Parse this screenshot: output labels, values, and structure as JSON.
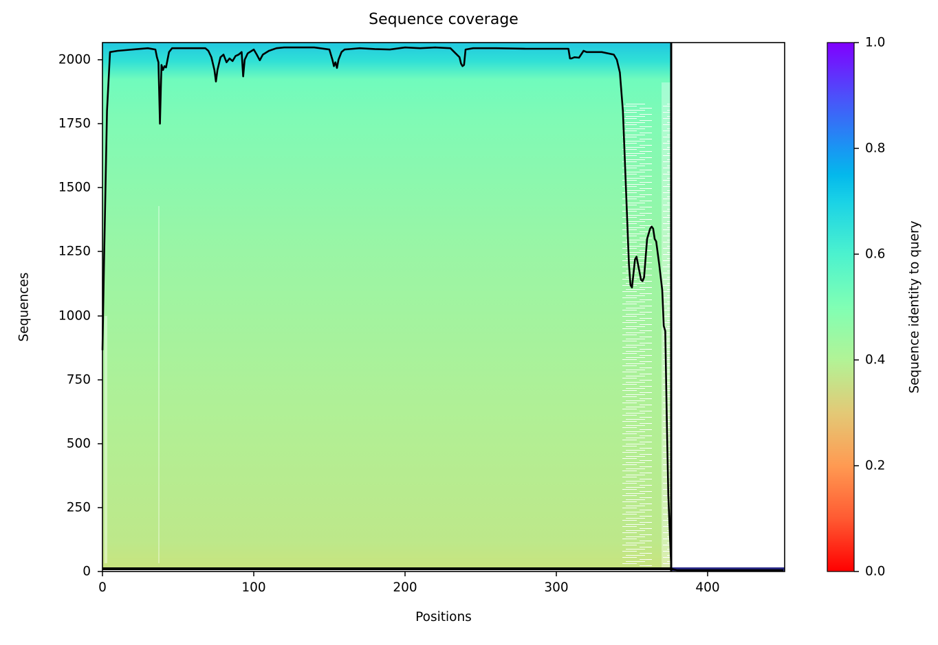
{
  "chart_data": {
    "type": "heatmap",
    "title": "Sequence coverage",
    "xlabel": "Positions",
    "ylabel": "Sequences",
    "xlim": [
      0,
      450
    ],
    "ylim": [
      0,
      2067
    ],
    "xticks": [
      0,
      100,
      200,
      300,
      400
    ],
    "yticks": [
      0,
      250,
      500,
      750,
      1000,
      1250,
      1500,
      1750,
      2000
    ],
    "grid": false,
    "heatmap": {
      "description": "MSA rows sorted by sequence identity; colored by identity to query (rainbow_r colormap). Rows span positions 0-~376; query row 0 spans 0-450.",
      "n_sequences": 2060,
      "aligned_length": 376,
      "identity_gradient": [
        {
          "row": 0,
          "identity": 0.37
        },
        {
          "row": 500,
          "identity": 0.41
        },
        {
          "row": 1000,
          "identity": 0.44
        },
        {
          "row": 1500,
          "identity": 0.47
        },
        {
          "row": 1950,
          "identity": 0.52
        },
        {
          "row": 2060,
          "identity": 0.65
        }
      ]
    },
    "series": [
      {
        "name": "Coverage",
        "type": "line",
        "color": "#000000",
        "x": [
          0,
          1,
          3,
          5,
          10,
          20,
          30,
          35,
          36,
          37,
          38,
          39,
          40,
          41,
          42,
          44,
          46,
          50,
          60,
          68,
          70,
          72,
          74,
          75,
          76,
          78,
          80,
          82,
          84,
          86,
          88,
          90,
          92,
          93,
          94,
          96,
          100,
          102,
          104,
          106,
          110,
          115,
          120,
          140,
          150,
          152,
          153,
          154,
          155,
          156,
          158,
          160,
          170,
          180,
          190,
          200,
          210,
          220,
          230,
          236,
          237,
          238,
          239,
          240,
          245,
          260,
          280,
          300,
          308,
          309,
          310,
          312,
          315,
          318,
          320,
          330,
          338,
          340,
          342,
          344,
          346,
          348,
          349,
          350,
          352,
          353,
          354,
          356,
          357,
          358,
          360,
          362,
          363,
          364,
          365,
          366,
          368,
          370,
          371,
          372,
          373,
          374,
          375,
          376,
          380,
          450
        ],
        "y": [
          865,
          1200,
          1800,
          2030,
          2035,
          2040,
          2045,
          2040,
          2010,
          1990,
          1750,
          1980,
          1960,
          1975,
          1970,
          2030,
          2045,
          2045,
          2045,
          2045,
          2035,
          2010,
          1960,
          1915,
          1960,
          2010,
          2020,
          1990,
          2005,
          1995,
          2015,
          2020,
          2030,
          1935,
          2000,
          2025,
          2040,
          2020,
          1998,
          2020,
          2035,
          2045,
          2048,
          2048,
          2040,
          2000,
          1975,
          1990,
          1968,
          2000,
          2030,
          2040,
          2045,
          2042,
          2040,
          2048,
          2045,
          2048,
          2045,
          2010,
          1985,
          1975,
          1980,
          2040,
          2045,
          2045,
          2043,
          2043,
          2043,
          2005,
          2005,
          2010,
          2008,
          2035,
          2030,
          2030,
          2020,
          2000,
          1950,
          1800,
          1500,
          1200,
          1120,
          1110,
          1220,
          1230,
          1200,
          1140,
          1135,
          1150,
          1300,
          1340,
          1348,
          1340,
          1300,
          1290,
          1200,
          1100,
          960,
          940,
          600,
          300,
          150,
          10,
          5,
          5
        ]
      }
    ],
    "colorbar": {
      "label": "Sequence identity to query",
      "ticks": [
        0.0,
        0.2,
        0.4,
        0.6,
        0.8,
        1.0
      ],
      "range": [
        0.0,
        1.0
      ],
      "colormap": "rainbow_r",
      "colors": [
        "#ff0000",
        "#ff9a52",
        "#b2f396",
        "#4cf2ce",
        "#1996f3",
        "#8000ff"
      ]
    }
  },
  "labels": {
    "title": "Sequence coverage",
    "xlabel": "Positions",
    "ylabel": "Sequences",
    "colorbar_label": "Sequence identity to query",
    "xticks": [
      "0",
      "100",
      "200",
      "300",
      "400"
    ],
    "yticks": [
      "0",
      "250",
      "500",
      "750",
      "1000",
      "1250",
      "1500",
      "1750",
      "2000"
    ],
    "cbticks": [
      "0.0",
      "0.2",
      "0.4",
      "0.6",
      "0.8",
      "1.0"
    ]
  }
}
